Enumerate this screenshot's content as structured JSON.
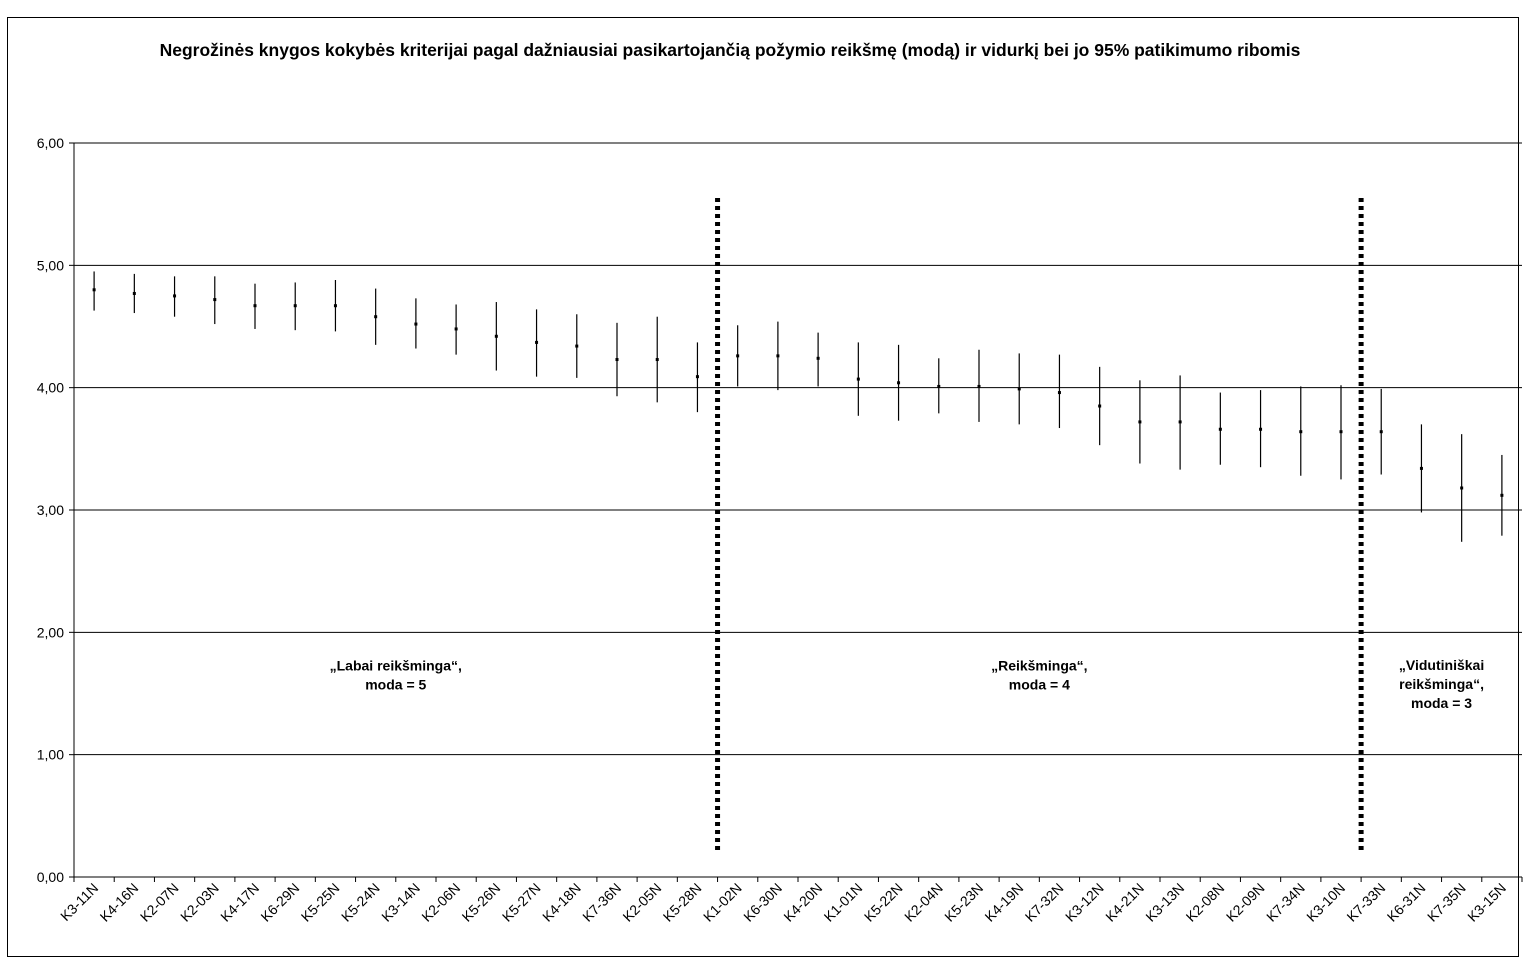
{
  "chart_data": {
    "type": "scatter",
    "title": "Negrožinės knygos kokybės kriterijai pagal dažniausiai pasikartojančią požymio reikšmę (modą) ir vidurkį bei jo 95% patikimumo ribomis",
    "xlabel": "",
    "ylabel": "",
    "ylim": [
      0,
      6
    ],
    "yticks": [
      "0,00",
      "1,00",
      "2,00",
      "3,00",
      "4,00",
      "5,00",
      "6,00"
    ],
    "grid": "horizontal",
    "categories": [
      "K3-11N",
      "K4-16N",
      "K2-07N",
      "K2-03N",
      "K4-17N",
      "K6-29N",
      "K5-25N",
      "K5-24N",
      "K3-14N",
      "K2-06N",
      "K5-26N",
      "K5-27N",
      "K4-18N",
      "K7-36N",
      "K2-05N",
      "K5-28N",
      "K1-02N",
      "K6-30N",
      "K4-20N",
      "K1-01N",
      "K5-22N",
      "K2-04N",
      "K5-23N",
      "K4-19N",
      "K7-32N",
      "K3-12N",
      "K4-21N",
      "K3-13N",
      "K2-08N",
      "K2-09N",
      "K7-34N",
      "K3-10N",
      "K7-33N",
      "K6-31N",
      "K7-35N",
      "K3-15N"
    ],
    "series": [
      {
        "mean": [
          4.8,
          4.77,
          4.75,
          4.72,
          4.67,
          4.67,
          4.67,
          4.58,
          4.52,
          4.48,
          4.42,
          4.37,
          4.34,
          4.23,
          4.23,
          4.09,
          4.26,
          4.26,
          4.24,
          4.07,
          4.04,
          4.01,
          4.01,
          3.99,
          3.96,
          3.85,
          3.72,
          3.72,
          3.66,
          3.66,
          3.64,
          3.64,
          3.64,
          3.34,
          3.18,
          3.12
        ],
        "lower": [
          4.63,
          4.61,
          4.58,
          4.52,
          4.48,
          4.47,
          4.46,
          4.35,
          4.32,
          4.27,
          4.14,
          4.09,
          4.08,
          3.93,
          3.88,
          3.8,
          4.01,
          3.98,
          4.01,
          3.77,
          3.73,
          3.79,
          3.72,
          3.7,
          3.67,
          3.53,
          3.38,
          3.33,
          3.37,
          3.35,
          3.28,
          3.25,
          3.29,
          2.98,
          2.74,
          2.79
        ],
        "upper": [
          4.95,
          4.93,
          4.91,
          4.91,
          4.85,
          4.86,
          4.88,
          4.81,
          4.73,
          4.68,
          4.7,
          4.64,
          4.6,
          4.53,
          4.58,
          4.37,
          4.51,
          4.54,
          4.45,
          4.37,
          4.35,
          4.24,
          4.31,
          4.28,
          4.27,
          4.17,
          4.06,
          4.1,
          3.96,
          3.98,
          4.01,
          4.02,
          3.99,
          3.7,
          3.62,
          3.45
        ]
      }
    ],
    "separators_after_index": [
      15,
      31
    ],
    "group_labels": [
      {
        "lines": [
          "„Labai reikšminga“,",
          "moda = 5"
        ]
      },
      {
        "lines": [
          "„Reikšminga“,",
          "moda = 4"
        ]
      },
      {
        "lines": [
          "„Vidutiniškai",
          "reikšminga“,",
          "moda = 3"
        ]
      }
    ]
  }
}
